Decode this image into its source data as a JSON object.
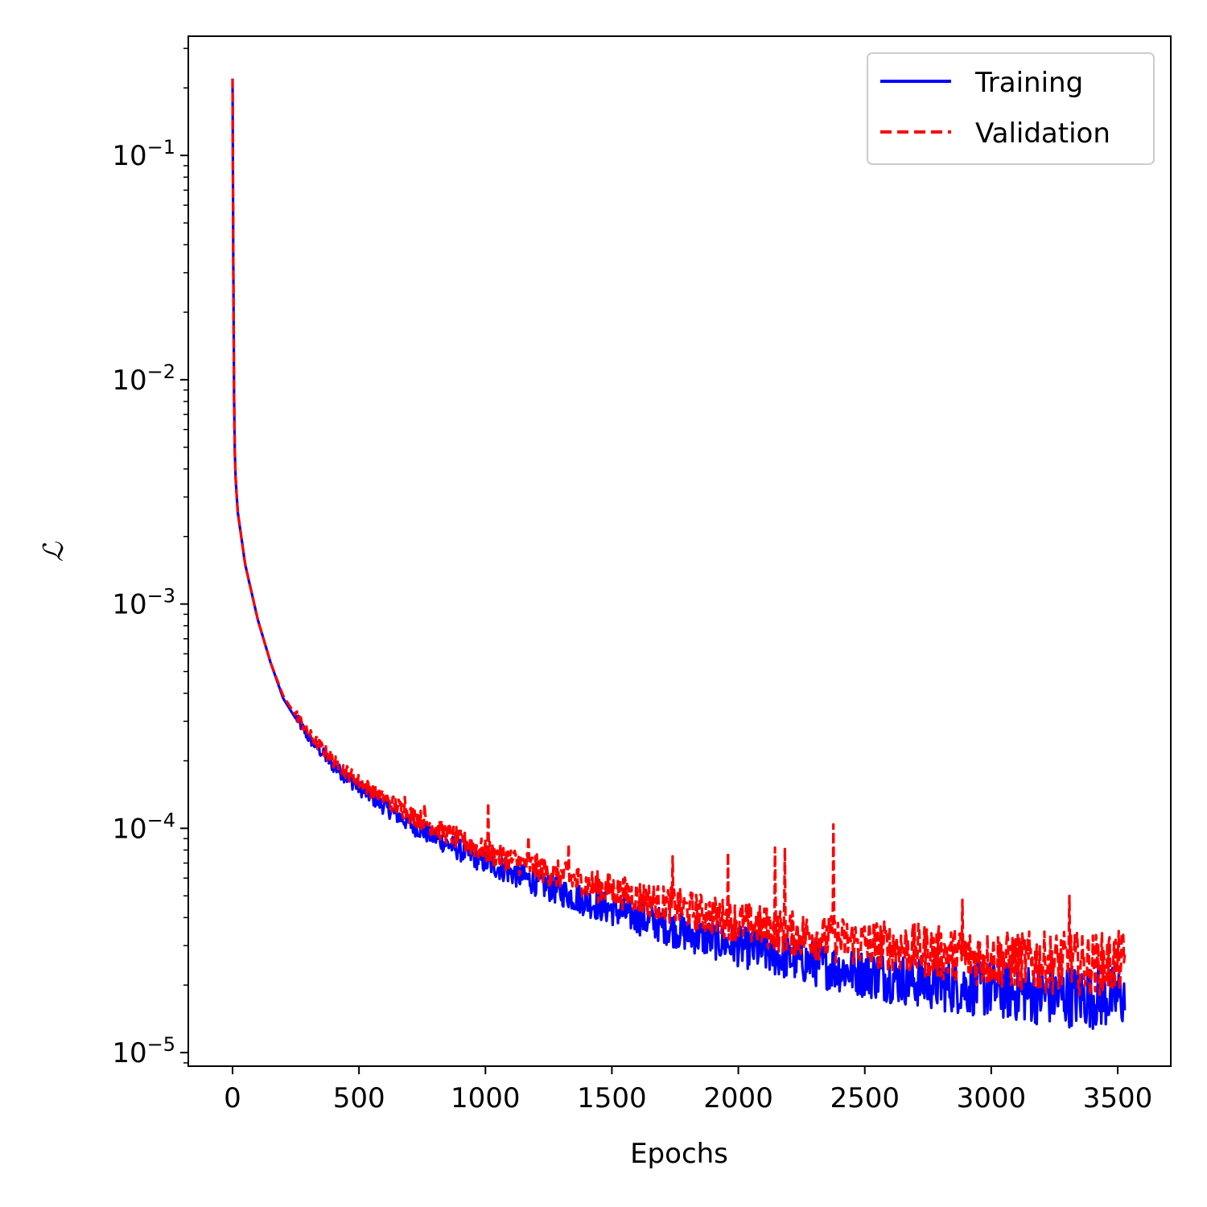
{
  "chart_data": {
    "type": "line",
    "title": "",
    "xlabel": "Epochs",
    "ylabel": "ℒ",
    "xlim": [
      -175,
      3710
    ],
    "ylim": [
      8.7e-06,
      0.34
    ],
    "yscale": "log",
    "grid": false,
    "legend_position": "top-right",
    "x_ticks": [
      0,
      500,
      1000,
      1500,
      2000,
      2500,
      3000,
      3500
    ],
    "x_tick_labels": [
      "0",
      "500",
      "1000",
      "1500",
      "2000",
      "2500",
      "3000",
      "3500"
    ],
    "y_ticks": [
      1e-05,
      0.0001,
      0.001,
      0.01,
      0.1
    ],
    "y_tick_labels": [
      {
        "base": "10",
        "exp": "−5"
      },
      {
        "base": "10",
        "exp": "−4"
      },
      {
        "base": "10",
        "exp": "−3"
      },
      {
        "base": "10",
        "exp": "−2"
      },
      {
        "base": "10",
        "exp": "−1"
      }
    ],
    "series": [
      {
        "name": "Training",
        "color": "#0000ff",
        "style": "solid",
        "x": [
          0,
          5,
          10,
          20,
          50,
          100,
          150,
          200,
          300,
          400,
          500,
          600,
          700,
          800,
          900,
          1000,
          1200,
          1400,
          1600,
          1800,
          2000,
          2200,
          2400,
          2600,
          2800,
          3000,
          3200,
          3400,
          3530
        ],
        "y": [
          0.22,
          0.01,
          0.004,
          0.0026,
          0.0015,
          0.00085,
          0.00055,
          0.00038,
          0.00025,
          0.000185,
          0.000148,
          0.000122,
          0.000102,
          8.8e-05,
          7.7e-05,
          6.8e-05,
          5.5e-05,
          4.5e-05,
          3.8e-05,
          3.2e-05,
          2.8e-05,
          2.45e-05,
          2.2e-05,
          2e-05,
          1.85e-05,
          1.75e-05,
          1.65e-05,
          1.6e-05,
          1.6e-05
        ]
      },
      {
        "name": "Validation",
        "color": "#ff0000",
        "style": "dashed",
        "x": [
          0,
          5,
          10,
          20,
          50,
          100,
          150,
          200,
          300,
          400,
          500,
          600,
          700,
          800,
          900,
          1000,
          1200,
          1400,
          1600,
          1800,
          2000,
          2200,
          2400,
          2600,
          2800,
          3000,
          3200,
          3400,
          3530
        ],
        "y": [
          0.22,
          0.01,
          0.004,
          0.0026,
          0.0015,
          0.00085,
          0.00055,
          0.00039,
          0.00026,
          0.000195,
          0.000157,
          0.000132,
          0.000113,
          9.8e-05,
          8.6e-05,
          7.6e-05,
          6.4e-05,
          5.4e-05,
          4.7e-05,
          4.1e-05,
          3.6e-05,
          3.2e-05,
          2.95e-05,
          2.75e-05,
          2.55e-05,
          2.4e-05,
          2.3e-05,
          2.25e-05,
          2.3e-05
        ],
        "spikes": [
          {
            "x": 680,
            "y": 0.000138
          },
          {
            "x": 760,
            "y": 0.000128
          },
          {
            "x": 1010,
            "y": 0.00013
          },
          {
            "x": 1170,
            "y": 9.2e-05
          },
          {
            "x": 1330,
            "y": 8.5e-05
          },
          {
            "x": 1740,
            "y": 7.5e-05
          },
          {
            "x": 1960,
            "y": 7.8e-05
          },
          {
            "x": 2145,
            "y": 8.2e-05
          },
          {
            "x": 2185,
            "y": 8.2e-05
          },
          {
            "x": 2375,
            "y": 0.000104
          },
          {
            "x": 2885,
            "y": 4.8e-05
          },
          {
            "x": 3310,
            "y": 5e-05
          }
        ]
      }
    ]
  }
}
